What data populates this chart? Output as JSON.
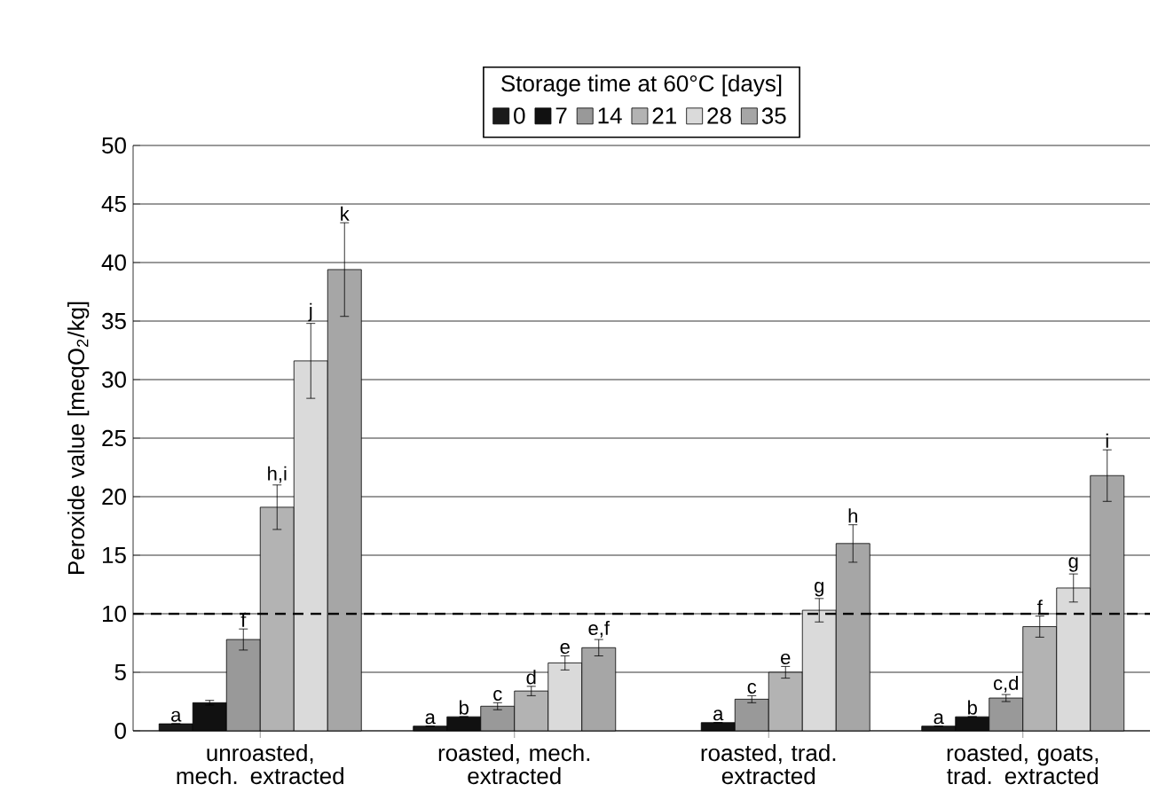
{
  "chart_data": {
    "type": "bar",
    "legend_title": "Storage time at 60°C [days]",
    "ylabel": "Peroxide value [meqO$_{2}$/kg]",
    "categories": [
      "unroasted, mech. extracted",
      "roasted, mech. extracted",
      "roasted, trad. extracted",
      "roasted, goats, trad. extracted"
    ],
    "series": [
      {
        "name": "0",
        "color": "#1a1a1a",
        "values": [
          0.6,
          0.4,
          null,
          0.4
        ],
        "errors": [
          null,
          null,
          null,
          null
        ],
        "value_labels": [
          "a",
          "a",
          null,
          "a"
        ]
      },
      {
        "name": "7",
        "color": "#111111",
        "values": [
          2.4,
          1.2,
          0.7,
          1.2
        ],
        "errors": [
          0.2,
          null,
          null,
          null
        ],
        "value_labels": [
          null,
          "b",
          "a",
          "b"
        ]
      },
      {
        "name": "14",
        "color": "#999999",
        "values": [
          7.8,
          2.1,
          2.7,
          2.8
        ],
        "errors": [
          0.9,
          0.3,
          0.3,
          0.3
        ],
        "value_labels": [
          "f",
          "c",
          "c",
          "c,d"
        ]
      },
      {
        "name": "21",
        "color": "#b3b3b3",
        "values": [
          19.1,
          3.4,
          5.0,
          8.9
        ],
        "errors": [
          1.9,
          0.4,
          0.5,
          0.9
        ],
        "value_labels": [
          "h,i",
          "d",
          "e",
          "f"
        ]
      },
      {
        "name": "28",
        "color": "#dadada",
        "values": [
          31.6,
          5.8,
          10.3,
          12.2
        ],
        "errors": [
          3.2,
          0.6,
          1.0,
          1.2
        ],
        "value_labels": [
          "j",
          "e",
          "g",
          "g"
        ]
      },
      {
        "name": "35",
        "color": "#a6a6a6",
        "values": [
          39.4,
          7.1,
          16.0,
          21.8
        ],
        "errors": [
          4.0,
          0.7,
          1.6,
          2.2
        ],
        "value_labels": [
          "k",
          "e,f",
          "h",
          "i"
        ]
      }
    ],
    "ylim": [
      0,
      50
    ],
    "yticks": [
      0,
      5,
      10,
      15,
      20,
      25,
      30,
      35,
      40,
      45,
      50
    ],
    "grid": "y",
    "legend": "top",
    "ref_lines": [
      {
        "axis": "y",
        "value": 10,
        "line_style": "dashed"
      }
    ]
  }
}
